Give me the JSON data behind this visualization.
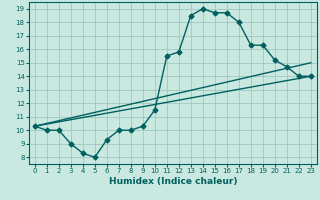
{
  "title": "",
  "xlabel": "Humidex (Indice chaleur)",
  "bg_color": "#c8e8e0",
  "line_color": "#006060",
  "grid_color": "#a0c8c0",
  "xlim": [
    -0.5,
    23.5
  ],
  "ylim": [
    7.5,
    19.5
  ],
  "xticks": [
    0,
    1,
    2,
    3,
    4,
    5,
    6,
    7,
    8,
    9,
    10,
    11,
    12,
    13,
    14,
    15,
    16,
    17,
    18,
    19,
    20,
    21,
    22,
    23
  ],
  "yticks": [
    8,
    9,
    10,
    11,
    12,
    13,
    14,
    15,
    16,
    17,
    18,
    19
  ],
  "line1_x": [
    0,
    1,
    2,
    3,
    4,
    5,
    6,
    7,
    8,
    9,
    10,
    11,
    12,
    13,
    14,
    15,
    16,
    17,
    18,
    19,
    20,
    21,
    22,
    23
  ],
  "line1_y": [
    10.3,
    10.0,
    10.0,
    9.0,
    8.3,
    8.0,
    9.3,
    10.0,
    10.0,
    10.3,
    11.5,
    15.5,
    15.8,
    18.5,
    19.0,
    18.7,
    18.7,
    18.0,
    16.3,
    16.3,
    15.2,
    14.7,
    14.0,
    14.0
  ],
  "line2_x": [
    0,
    23
  ],
  "line2_y": [
    10.3,
    14.0
  ],
  "line3_x": [
    0,
    23
  ],
  "line3_y": [
    10.3,
    15.0
  ],
  "marker": "D",
  "markersize": 2.5,
  "linewidth": 1.0
}
